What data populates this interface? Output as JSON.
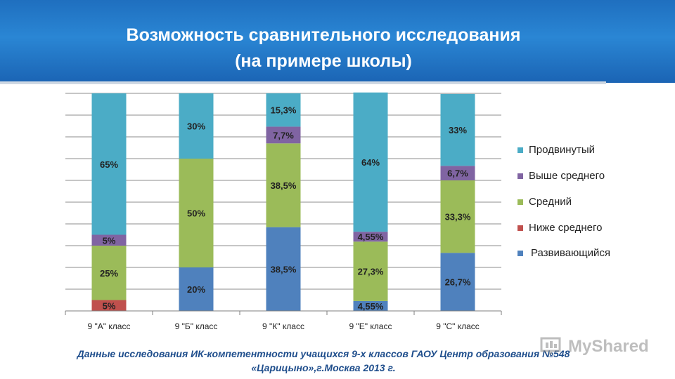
{
  "header": {
    "title_line1": "Возможность сравнительного исследования",
    "title_line2": "(на примере школы)"
  },
  "chart_data": {
    "type": "bar",
    "stacked": true,
    "percent_stacked": true,
    "categories": [
      "9 \"А\" класс",
      "9 \"Б\" класс",
      "9 \"К\" класс",
      "9 \"Е\" класс",
      "9 \"С\" класс"
    ],
    "series": [
      {
        "name": "Развивающийся",
        "color": "#4f81bd",
        "values": [
          0,
          20,
          38.5,
          4.55,
          26.7
        ],
        "labels": [
          "",
          "20%",
          "38,5%",
          "4,55%",
          "26,7%"
        ]
      },
      {
        "name": "Ниже среднего",
        "color": "#c0504d",
        "values": [
          5,
          0,
          0,
          0,
          0
        ],
        "labels": [
          "5%",
          "",
          "",
          "",
          ""
        ]
      },
      {
        "name": "Средний",
        "color": "#9bbb59",
        "values": [
          25,
          50,
          38.5,
          27.3,
          33.3
        ],
        "labels": [
          "25%",
          "50%",
          "38,5%",
          "27,3%",
          "33,3%"
        ]
      },
      {
        "name": "Выше среднего",
        "color": "#8064a2",
        "values": [
          5,
          0,
          7.7,
          4.55,
          6.7
        ],
        "labels": [
          "5%",
          "",
          "7,7%",
          "4,55%",
          "6,7%"
        ]
      },
      {
        "name": "Продвинутый",
        "color": "#4bacc6",
        "values": [
          65,
          30,
          15.3,
          64,
          33
        ],
        "labels": [
          "65%",
          "30%",
          "15,3%",
          "64%",
          "33%"
        ]
      }
    ],
    "ylim": [
      0,
      100
    ],
    "grid": true,
    "legend_position": "right",
    "legend_order": [
      "Продвинутый",
      "Выше среднего",
      "Средний",
      "Ниже среднего",
      "Развивающийся"
    ]
  },
  "footer": {
    "line1": "Данные исследования ИК-компетентности учащихся 9-х классов ГАОУ Центр образования №548",
    "line2": "«Царицыно»,г.Москва 2013 г."
  },
  "watermark": {
    "text": "MyShared",
    "icon": "presentation-icon"
  }
}
